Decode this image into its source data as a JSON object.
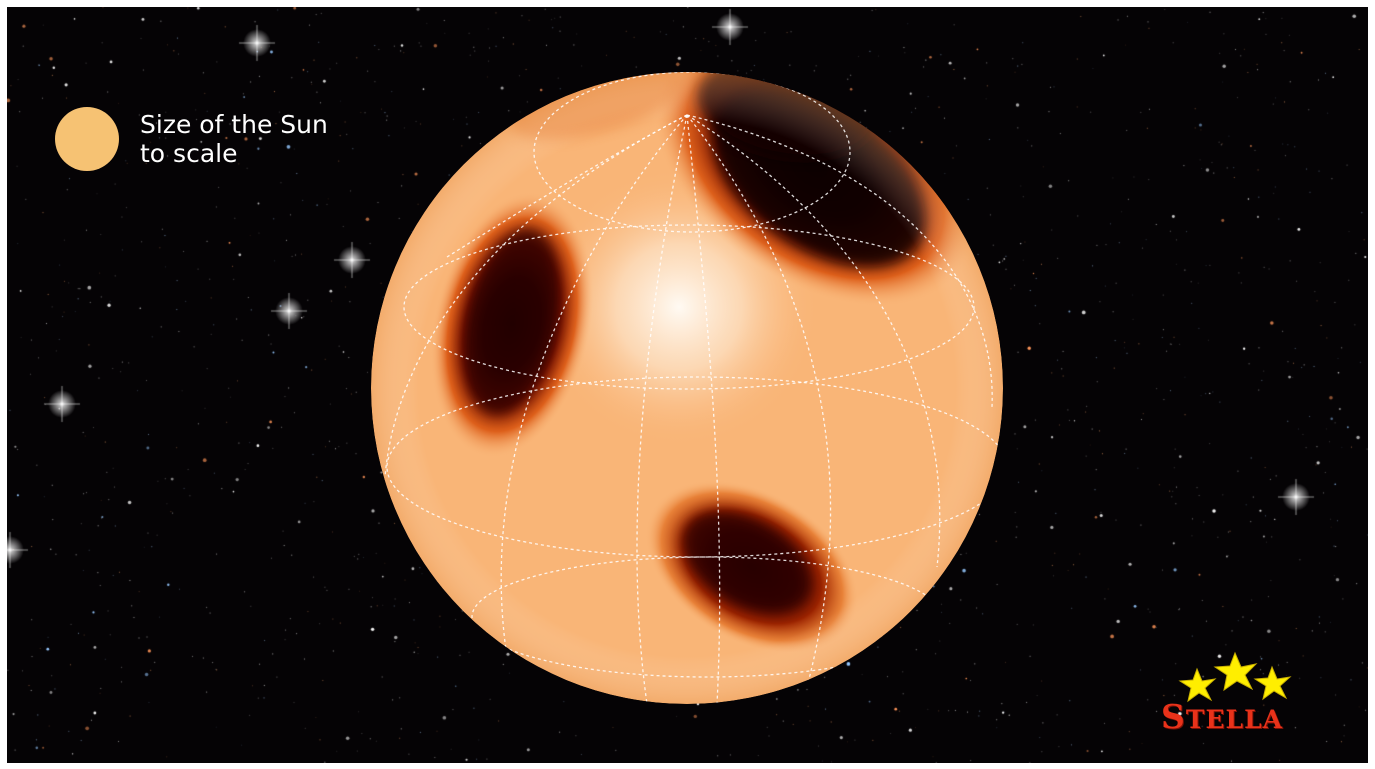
{
  "legend": {
    "swatch_color": "#f6c273",
    "line1": "Size of the Sun",
    "line2": "to scale"
  },
  "star": {
    "surface_color": "#f9b577",
    "spot_color": "#140000",
    "grid": "dashed latitude/longitude lines"
  },
  "logo": {
    "text_first": "S",
    "text_rest": "TELLA",
    "star_color": "#ffee00",
    "text_color": "#e8321a",
    "icons": [
      "star-icon",
      "star-icon",
      "star-icon"
    ]
  },
  "background": {
    "description_color": "#050305"
  }
}
